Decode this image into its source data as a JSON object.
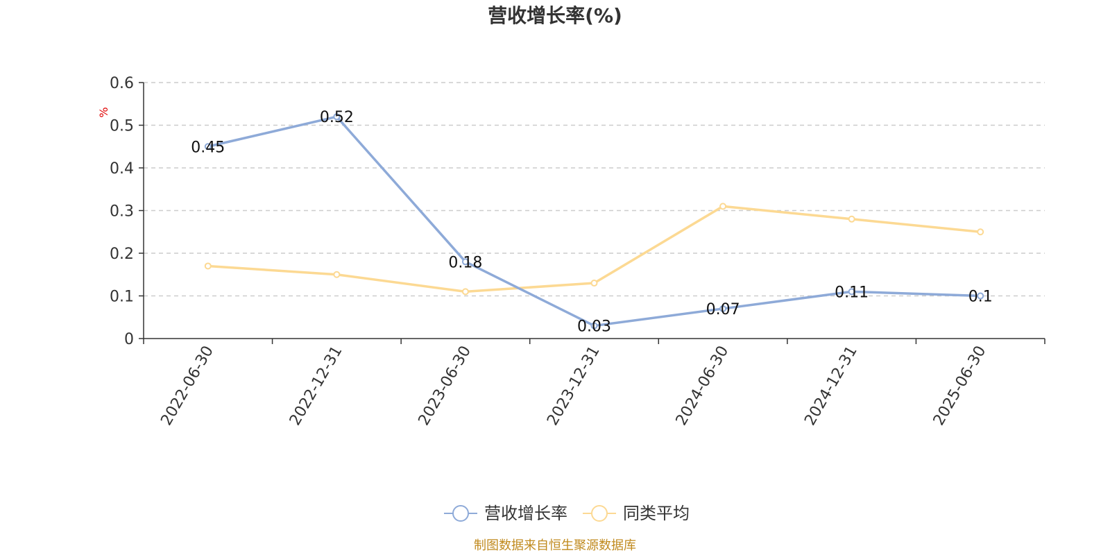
{
  "chart_data": {
    "type": "line",
    "title": "营收增长率(%)",
    "ylabel": "%",
    "xlabel": "",
    "categories": [
      "2022-06-30",
      "2022-12-31",
      "2023-06-30",
      "2023-12-31",
      "2024-06-30",
      "2024-12-31",
      "2025-06-30"
    ],
    "ylim": [
      0,
      0.6
    ],
    "yticks": [
      "0",
      "0.1",
      "0.2",
      "0.3",
      "0.4",
      "0.5",
      "0.6"
    ],
    "grid": true,
    "legend_position": "bottom-center",
    "series": [
      {
        "name": "营收增长率",
        "color": "#8eaad8",
        "values": [
          0.45,
          0.52,
          0.18,
          0.03,
          0.07,
          0.11,
          0.1
        ],
        "labels": [
          "0.45",
          "0.52",
          "0.18",
          "0.03",
          "0.07",
          "0.11",
          "0.1"
        ],
        "show_labels": true
      },
      {
        "name": "同类平均",
        "color": "#fcd993",
        "values": [
          0.17,
          0.15,
          0.11,
          0.13,
          0.31,
          0.28,
          0.25
        ],
        "show_labels": false
      }
    ],
    "source": "制图数据来自恒生聚源数据库"
  }
}
